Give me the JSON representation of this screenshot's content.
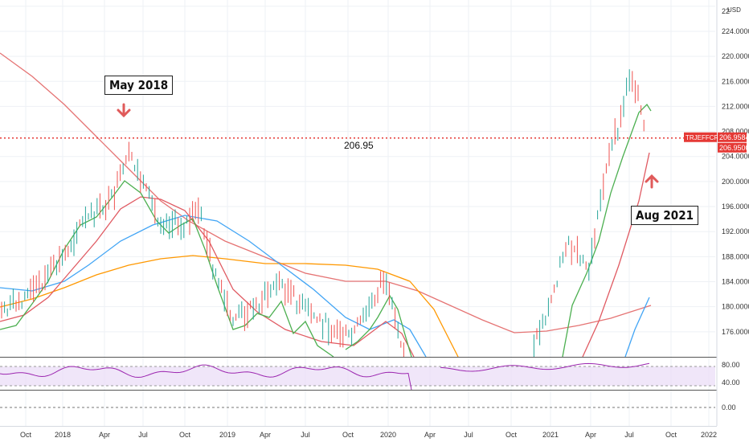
{
  "colors": {
    "up_bar": "#26a69a",
    "down_bar": "#ef5350",
    "rsi_line": "#9c27b0",
    "rsi_band": "#e9dcf6",
    "ma_fast": "#4caf50",
    "ma_mid": "#e05a62",
    "ma_blue": "#42a5f5",
    "ma_orange": "#ff9800",
    "ma_red_long": "#e57373",
    "level_line": "#e53935",
    "arrow": "#e05a5a",
    "axis_text": "#333333",
    "grid": "#eef1f5"
  },
  "currency_label": "USD",
  "ticker_badge": {
    "symbol": "TRJEFFCRB",
    "price": "206.9584",
    "level": "206.9500"
  },
  "level_label": "206.95",
  "annotations": [
    {
      "text": "May 2018",
      "arrow": "down"
    },
    {
      "text": "Aug 2021",
      "arrow": "up"
    }
  ],
  "chart_data": {
    "type": "bar",
    "title": "",
    "price_axis_ticks": [
      "224.0000",
      "220.0000",
      "216.0000",
      "212.0000",
      "208.0000",
      "204.0000",
      "200.0000",
      "196.0000",
      "192.0000",
      "188.0000",
      "184.0000",
      "180.0000",
      "176.0000"
    ],
    "price_axis_top_label": "22",
    "ylim": [
      172,
      229
    ],
    "horizontal_level": 206.95,
    "x_tick_labels": [
      "Oct",
      "2018",
      "Apr",
      "Jul",
      "Oct",
      "2019",
      "Apr",
      "Jul",
      "Oct",
      "2020",
      "Apr",
      "Jul",
      "Oct",
      "2021",
      "Apr",
      "Jul",
      "Oct",
      "2022"
    ],
    "x_range": [
      2017.6,
      2022.05
    ],
    "series_close": [
      {
        "x": 2017.6,
        "y": 179.5
      },
      {
        "x": 2017.7,
        "y": 180.5
      },
      {
        "x": 2017.8,
        "y": 182.5
      },
      {
        "x": 2017.9,
        "y": 185.0
      },
      {
        "x": 2018.0,
        "y": 188.0
      },
      {
        "x": 2018.1,
        "y": 193.0
      },
      {
        "x": 2018.2,
        "y": 195.0
      },
      {
        "x": 2018.3,
        "y": 197.0
      },
      {
        "x": 2018.42,
        "y": 204.5
      },
      {
        "x": 2018.5,
        "y": 199.0
      },
      {
        "x": 2018.6,
        "y": 194.0
      },
      {
        "x": 2018.75,
        "y": 193.0
      },
      {
        "x": 2018.85,
        "y": 195.5
      },
      {
        "x": 2018.95,
        "y": 185.0
      },
      {
        "x": 2019.05,
        "y": 178.0
      },
      {
        "x": 2019.2,
        "y": 180.0
      },
      {
        "x": 2019.35,
        "y": 184.0
      },
      {
        "x": 2019.5,
        "y": 180.0
      },
      {
        "x": 2019.65,
        "y": 177.0
      },
      {
        "x": 2019.8,
        "y": 175.0
      },
      {
        "x": 2019.95,
        "y": 181.0
      },
      {
        "x": 2020.0,
        "y": 185.0
      },
      {
        "x": 2020.1,
        "y": 176.0
      },
      {
        "x": 2020.15,
        "y": 172.0
      },
      {
        "x": 2020.95,
        "y": 174.0
      },
      {
        "x": 2021.05,
        "y": 180.0
      },
      {
        "x": 2021.15,
        "y": 190.0
      },
      {
        "x": 2021.3,
        "y": 186.0
      },
      {
        "x": 2021.4,
        "y": 202.0
      },
      {
        "x": 2021.5,
        "y": 210.0
      },
      {
        "x": 2021.55,
        "y": 217.0
      },
      {
        "x": 2021.6,
        "y": 215.0
      },
      {
        "x": 2021.65,
        "y": 206.95
      }
    ],
    "rsi_ticks": [
      "80.00",
      "40.00"
    ],
    "macd_ticks": [
      "0.00"
    ]
  }
}
